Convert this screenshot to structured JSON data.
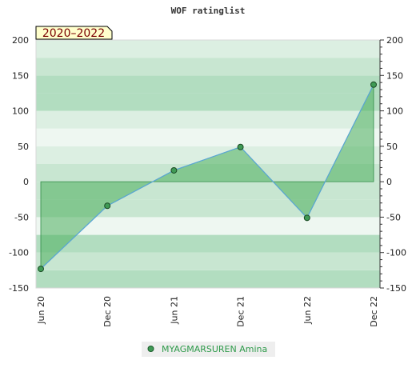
{
  "chart_data": {
    "type": "area",
    "title": "WOF ratinglist",
    "period_label": "2020–2022",
    "x": [
      "Jun 20",
      "Dec 20",
      "Jun 21",
      "Dec 21",
      "Jun 22",
      "Dec 22"
    ],
    "series": [
      {
        "name": "MYAGMARSUREN Amina",
        "values": [
          -123,
          -34,
          16,
          49,
          -51,
          137
        ]
      }
    ],
    "ylim": [
      -150,
      200
    ],
    "y_ticks": [
      -150,
      -100,
      -50,
      0,
      50,
      100,
      150,
      200
    ],
    "y_ticks_right": [
      -150,
      -100,
      -50,
      0,
      50,
      100,
      150,
      200
    ],
    "legend_position": "bottom-center",
    "grid": true,
    "colors": {
      "line": "#5aa6d6",
      "fill": "#4cae5c",
      "marker": "#3f9a55",
      "band_dark": "#b2ddc0",
      "band_mid": "#c8e6d1",
      "band_light": "#dcefe2",
      "band_lightest": "#eef7f1"
    }
  }
}
